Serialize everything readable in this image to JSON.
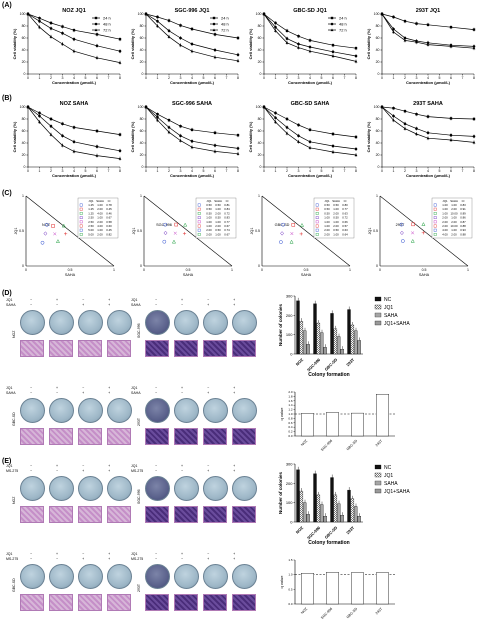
{
  "panels": {
    "A": {
      "letter": "(A)",
      "plots": [
        {
          "title": "NOZ JQ1",
          "legend": [
            "24 h",
            "48 h",
            "72 h"
          ],
          "series": [
            [
              100,
              93,
              85,
              79,
              73,
              66,
              58
            ],
            [
              100,
              88,
              76,
              68,
              58,
              47,
              38
            ],
            [
              100,
              78,
              62,
              50,
              38,
              27,
              19
            ]
          ]
        },
        {
          "title": "SGC-996 JQ1",
          "legend": [
            "24 h",
            "48 h",
            "72 h"
          ],
          "series": [
            [
              100,
              95,
              89,
              81,
              75,
              66,
              60
            ],
            [
              100,
              88,
              72,
              60,
              50,
              40,
              32
            ],
            [
              100,
              80,
              62,
              48,
              38,
              28,
              22
            ]
          ]
        },
        {
          "title": "GBC-SD JQ1",
          "legend": [
            "24 h",
            "48 h",
            "72 h"
          ],
          "series": [
            [
              100,
              85,
              72,
              63,
              56,
              48,
              43
            ],
            [
              100,
              78,
              59,
              50,
              45,
              37,
              30
            ],
            [
              100,
              72,
              52,
              44,
              38,
              30,
              21
            ]
          ]
        },
        {
          "title": "293T JQ1",
          "legend": [],
          "series": [
            [
              100,
              95,
              88,
              84,
              82,
              78,
              74
            ],
            [
              100,
              75,
              60,
              55,
              52,
              48,
              46
            ],
            [
              100,
              70,
              56,
              53,
              49,
              46,
              43
            ]
          ]
        }
      ],
      "xlabel": "Concentration (μmol/L)",
      "ylabel": "Cell viability (%)",
      "xticks": [
        "0",
        "1",
        "2",
        "3",
        "4",
        "5",
        "6",
        "7",
        "8"
      ],
      "yticks": [
        "0",
        "20",
        "40",
        "60",
        "80",
        "100"
      ]
    },
    "B": {
      "letter": "(B)",
      "plots": [
        {
          "title": "NOZ SAHA",
          "series": [
            [
              100,
              90,
              80,
              72,
              66,
              60,
              54
            ],
            [
              100,
              85,
              68,
              52,
              42,
              34,
              27
            ],
            [
              100,
              75,
              54,
              36,
              26,
              19,
              14
            ]
          ]
        },
        {
          "title": "SGC-996 SAHA",
          "series": [
            [
              100,
              88,
              78,
              68,
              62,
              57,
              53
            ],
            [
              100,
              83,
              66,
              52,
              43,
              36,
              31
            ],
            [
              100,
              78,
              58,
              44,
              33,
              26,
              22
            ]
          ]
        },
        {
          "title": "GBC-SD SAHA",
          "series": [
            [
              100,
              90,
              80,
              70,
              62,
              55,
              50
            ],
            [
              100,
              82,
              66,
              52,
              42,
              35,
              30
            ],
            [
              100,
              75,
              56,
              42,
              32,
              25,
              20
            ]
          ]
        },
        {
          "title": "293T SAHA",
          "series": [
            [
              100,
              98,
              93,
              88,
              84,
              81,
              80
            ],
            [
              100,
              85,
              72,
              64,
              57,
              53,
              51
            ],
            [
              100,
              78,
              64,
              55,
              48,
              45,
              41
            ]
          ]
        }
      ],
      "xlabel": "Concentration (μmol/L)",
      "ylabel": "Cell viability (%)"
    },
    "C": {
      "letter": "(C)",
      "plots": [
        {
          "label": "NOZ",
          "headers": [
            "JQ1",
            "SAHA",
            "CI"
          ],
          "rows": [
            [
              "1.25",
              "1.00",
              "0.78"
            ],
            [
              "1.25",
              "2.00",
              "0.45"
            ],
            [
              "1.25",
              "4.00",
              "0.46"
            ],
            [
              "2.50",
              "1.00",
              "0.67"
            ],
            [
              "2.50",
              "2.00",
              "0.58"
            ],
            [
              "2.50",
              "4.00",
              "0.60"
            ],
            [
              "5.00",
              "1.00",
              "0.45"
            ],
            [
              "5.00",
              "2.00",
              "0.82"
            ]
          ]
        },
        {
          "label": "SGC-996",
          "headers": [
            "JQ1",
            "SAHA",
            "CI"
          ],
          "rows": [
            [
              "0.50",
              "0.50",
              "0.81"
            ],
            [
              "0.50",
              "1.00",
              "0.84"
            ],
            [
              "0.50",
              "2.00",
              "0.72"
            ],
            [
              "1.00",
              "0.50",
              "0.83"
            ],
            [
              "1.00",
              "1.00",
              "0.77"
            ],
            [
              "1.00",
              "2.00",
              "0.67"
            ],
            [
              "2.00",
              "0.50",
              "0.74"
            ],
            [
              "2.00",
              "1.00",
              "0.67"
            ]
          ]
        },
        {
          "label": "GBC-SD",
          "headers": [
            "JQ1",
            "SAHA",
            "CI"
          ],
          "rows": [
            [
              "0.50",
              "0.50",
              "0.80"
            ],
            [
              "0.50",
              "1.00",
              "0.77"
            ],
            [
              "0.50",
              "2.00",
              "0.63"
            ],
            [
              "1.00",
              "0.50",
              "0.72"
            ],
            [
              "1.00",
              "1.00",
              "0.66"
            ],
            [
              "1.00",
              "2.00",
              "0.57"
            ],
            [
              "2.00",
              "0.50",
              "0.63"
            ],
            [
              "2.00",
              "1.00",
              "0.64"
            ]
          ]
        },
        {
          "label": "293T",
          "headers": [
            "JQ1",
            "SAHA",
            "CI"
          ],
          "rows": [
            [
              "1.00",
              "1.00",
              "0.83"
            ],
            [
              "1.00",
              "2.00",
              "0.91"
            ],
            [
              "1.00",
              "10.00",
              "0.89"
            ],
            [
              "2.00",
              "1.00",
              "0.86"
            ],
            [
              "2.00",
              "2.00",
              "0.87"
            ],
            [
              "2.00",
              "10.00",
              "0.88"
            ],
            [
              "4.00",
              "1.00",
              "0.93"
            ],
            [
              "4.00",
              "2.00",
              "0.88"
            ]
          ]
        }
      ],
      "xlabel": "SAHA",
      "ylabel": "JQ1",
      "ticks": [
        "0",
        "0.5",
        "1"
      ]
    },
    "D": {
      "letter": "(D)",
      "jq1": "JQ1",
      "saha": "SAHA",
      "signs_jq1": [
        "−",
        "+",
        "−",
        "+"
      ],
      "signs_saha": [
        "−",
        "−",
        "+",
        "+"
      ],
      "cells": [
        "NOZ",
        "SGC-996",
        "GBC-SD",
        "293T"
      ],
      "bar_chart": {
        "type": "bar",
        "categories": [
          "NOZ",
          "SGC-996",
          "GBC-SD",
          "293T"
        ],
        "series": [
          {
            "name": "NC",
            "values": [
              275,
              260,
              210,
              230
            ]
          },
          {
            "name": "JQ1",
            "values": [
              170,
              160,
              130,
              150
            ]
          },
          {
            "name": "SAHA",
            "values": [
              120,
              110,
              90,
              120
            ]
          },
          {
            "name": "JQ1+SAHA",
            "values": [
              50,
              35,
              25,
              70
            ]
          }
        ],
        "ylabel": "Number of colonies",
        "xlabel": "Colony formation",
        "ylim": [
          0,
          300
        ],
        "yticks": [
          "0",
          "100",
          "200",
          "300"
        ]
      },
      "q_chart": {
        "type": "bar",
        "categories": [
          "NOZ",
          "SGC-996",
          "GBC-SD",
          "293T"
        ],
        "values": [
          1.03,
          1.07,
          1.04,
          1.9
        ],
        "ylabel": "q value",
        "ylim": [
          0,
          2.0
        ],
        "yticks": [
          "0.0",
          "0.2",
          "0.4",
          "0.6",
          "0.8",
          "1.0",
          "1.2",
          "1.4",
          "1.6",
          "1.8",
          "2.0"
        ]
      }
    },
    "E": {
      "letter": "(E)",
      "jq1": "JQ1",
      "ms": "MS-275",
      "signs_jq1": [
        "−",
        "+",
        "−",
        "+"
      ],
      "signs_ms": [
        "−",
        "−",
        "+",
        "+"
      ],
      "cells": [
        "NOZ",
        "SGC-996",
        "GBC-SD",
        "293T"
      ],
      "bar_chart": {
        "type": "bar",
        "categories": [
          "NOZ",
          "SGC-996",
          "GBC-SD",
          "293T"
        ],
        "series": [
          {
            "name": "NC",
            "values": [
              270,
              250,
              230,
              165
            ]
          },
          {
            "name": "JQ1",
            "values": [
              160,
              140,
              140,
              120
            ]
          },
          {
            "name": "SAHA",
            "values": [
              100,
              90,
              95,
              80
            ]
          },
          {
            "name": "JQ1+SAHA",
            "values": [
              40,
              30,
              35,
              30
            ]
          }
        ],
        "ylabel": "Number of colonies",
        "xlabel": "Colony formation",
        "ylim": [
          0,
          300
        ],
        "yticks": [
          "0",
          "100",
          "200",
          "300"
        ]
      },
      "q_chart": {
        "type": "bar",
        "categories": [
          "NOZ",
          "SGC-996",
          "GBC-SD",
          "293T"
        ],
        "values": [
          1.05,
          1.08,
          1.07,
          1.07
        ],
        "ylabel": "q value",
        "ylim": [
          0,
          1.5
        ],
        "yticks": [
          "0.0",
          "0.5",
          "1.0",
          "1.5"
        ]
      }
    }
  },
  "colors": {
    "line_dark": "#000000",
    "ci_red": "#e03030",
    "ci_blue": "#3050d0",
    "ci_green": "#20a040",
    "ci_magenta": "#c030c0",
    "ci_purple": "#7030c0"
  },
  "chart_data": [
    {
      "type": "line",
      "title": "NOZ JQ1",
      "x": [
        0,
        1,
        2,
        3,
        4,
        6,
        8
      ],
      "series": [
        {
          "name": "24 h",
          "values": [
            100,
            93,
            85,
            79,
            73,
            66,
            58
          ]
        },
        {
          "name": "48 h",
          "values": [
            100,
            88,
            76,
            68,
            58,
            47,
            38
          ]
        },
        {
          "name": "72 h",
          "values": [
            100,
            78,
            62,
            50,
            38,
            27,
            19
          ]
        }
      ],
      "xlabel": "Concentration (μmol/L)",
      "ylabel": "Cell viability (%)",
      "ylim": [
        0,
        100
      ]
    },
    {
      "type": "bar",
      "title": "",
      "categories": [
        "NOZ",
        "SGC-996",
        "GBC-SD",
        "293T"
      ],
      "series": [
        {
          "name": "NC",
          "values": [
            275,
            260,
            210,
            230
          ]
        },
        {
          "name": "JQ1",
          "values": [
            170,
            160,
            130,
            150
          ]
        },
        {
          "name": "SAHA",
          "values": [
            120,
            110,
            90,
            120
          ]
        },
        {
          "name": "JQ1+SAHA",
          "values": [
            50,
            35,
            25,
            70
          ]
        }
      ],
      "ylabel": "Number of colonies",
      "xlabel": "Colony formation",
      "ylim": [
        0,
        300
      ]
    }
  ]
}
